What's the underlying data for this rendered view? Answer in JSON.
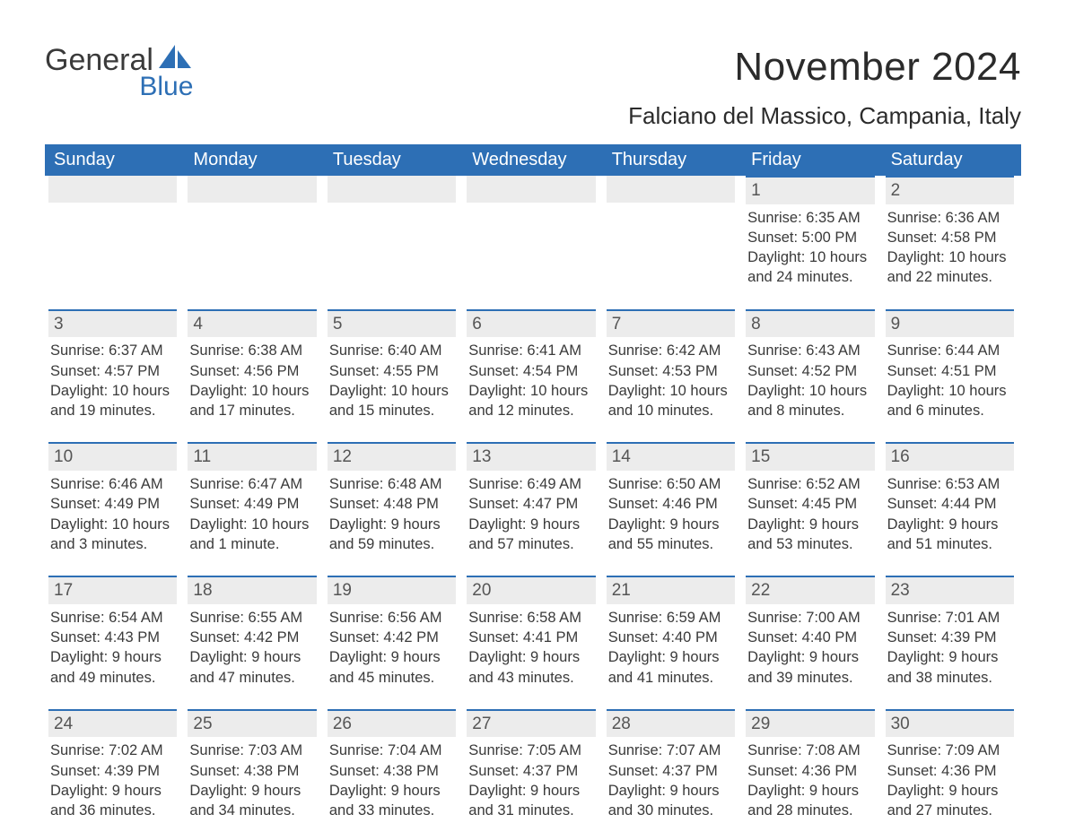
{
  "logo": {
    "general": "General",
    "blue": "Blue"
  },
  "title": "November 2024",
  "location": "Falciano del Massico, Campania, Italy",
  "colors": {
    "brand_blue": "#2d6fb5",
    "header_bg": "#2d6fb5",
    "daynum_bg": "#ececec",
    "text": "#3a3a3a",
    "page_bg": "#ffffff"
  },
  "weekdays": [
    "Sunday",
    "Monday",
    "Tuesday",
    "Wednesday",
    "Thursday",
    "Friday",
    "Saturday"
  ],
  "weeks": [
    [
      null,
      null,
      null,
      null,
      null,
      {
        "n": "1",
        "sunrise": "Sunrise: 6:35 AM",
        "sunset": "Sunset: 5:00 PM",
        "day1": "Daylight: 10 hours",
        "day2": "and 24 minutes."
      },
      {
        "n": "2",
        "sunrise": "Sunrise: 6:36 AM",
        "sunset": "Sunset: 4:58 PM",
        "day1": "Daylight: 10 hours",
        "day2": "and 22 minutes."
      }
    ],
    [
      {
        "n": "3",
        "sunrise": "Sunrise: 6:37 AM",
        "sunset": "Sunset: 4:57 PM",
        "day1": "Daylight: 10 hours",
        "day2": "and 19 minutes."
      },
      {
        "n": "4",
        "sunrise": "Sunrise: 6:38 AM",
        "sunset": "Sunset: 4:56 PM",
        "day1": "Daylight: 10 hours",
        "day2": "and 17 minutes."
      },
      {
        "n": "5",
        "sunrise": "Sunrise: 6:40 AM",
        "sunset": "Sunset: 4:55 PM",
        "day1": "Daylight: 10 hours",
        "day2": "and 15 minutes."
      },
      {
        "n": "6",
        "sunrise": "Sunrise: 6:41 AM",
        "sunset": "Sunset: 4:54 PM",
        "day1": "Daylight: 10 hours",
        "day2": "and 12 minutes."
      },
      {
        "n": "7",
        "sunrise": "Sunrise: 6:42 AM",
        "sunset": "Sunset: 4:53 PM",
        "day1": "Daylight: 10 hours",
        "day2": "and 10 minutes."
      },
      {
        "n": "8",
        "sunrise": "Sunrise: 6:43 AM",
        "sunset": "Sunset: 4:52 PM",
        "day1": "Daylight: 10 hours",
        "day2": "and 8 minutes."
      },
      {
        "n": "9",
        "sunrise": "Sunrise: 6:44 AM",
        "sunset": "Sunset: 4:51 PM",
        "day1": "Daylight: 10 hours",
        "day2": "and 6 minutes."
      }
    ],
    [
      {
        "n": "10",
        "sunrise": "Sunrise: 6:46 AM",
        "sunset": "Sunset: 4:49 PM",
        "day1": "Daylight: 10 hours",
        "day2": "and 3 minutes."
      },
      {
        "n": "11",
        "sunrise": "Sunrise: 6:47 AM",
        "sunset": "Sunset: 4:49 PM",
        "day1": "Daylight: 10 hours",
        "day2": "and 1 minute."
      },
      {
        "n": "12",
        "sunrise": "Sunrise: 6:48 AM",
        "sunset": "Sunset: 4:48 PM",
        "day1": "Daylight: 9 hours",
        "day2": "and 59 minutes."
      },
      {
        "n": "13",
        "sunrise": "Sunrise: 6:49 AM",
        "sunset": "Sunset: 4:47 PM",
        "day1": "Daylight: 9 hours",
        "day2": "and 57 minutes."
      },
      {
        "n": "14",
        "sunrise": "Sunrise: 6:50 AM",
        "sunset": "Sunset: 4:46 PM",
        "day1": "Daylight: 9 hours",
        "day2": "and 55 minutes."
      },
      {
        "n": "15",
        "sunrise": "Sunrise: 6:52 AM",
        "sunset": "Sunset: 4:45 PM",
        "day1": "Daylight: 9 hours",
        "day2": "and 53 minutes."
      },
      {
        "n": "16",
        "sunrise": "Sunrise: 6:53 AM",
        "sunset": "Sunset: 4:44 PM",
        "day1": "Daylight: 9 hours",
        "day2": "and 51 minutes."
      }
    ],
    [
      {
        "n": "17",
        "sunrise": "Sunrise: 6:54 AM",
        "sunset": "Sunset: 4:43 PM",
        "day1": "Daylight: 9 hours",
        "day2": "and 49 minutes."
      },
      {
        "n": "18",
        "sunrise": "Sunrise: 6:55 AM",
        "sunset": "Sunset: 4:42 PM",
        "day1": "Daylight: 9 hours",
        "day2": "and 47 minutes."
      },
      {
        "n": "19",
        "sunrise": "Sunrise: 6:56 AM",
        "sunset": "Sunset: 4:42 PM",
        "day1": "Daylight: 9 hours",
        "day2": "and 45 minutes."
      },
      {
        "n": "20",
        "sunrise": "Sunrise: 6:58 AM",
        "sunset": "Sunset: 4:41 PM",
        "day1": "Daylight: 9 hours",
        "day2": "and 43 minutes."
      },
      {
        "n": "21",
        "sunrise": "Sunrise: 6:59 AM",
        "sunset": "Sunset: 4:40 PM",
        "day1": "Daylight: 9 hours",
        "day2": "and 41 minutes."
      },
      {
        "n": "22",
        "sunrise": "Sunrise: 7:00 AM",
        "sunset": "Sunset: 4:40 PM",
        "day1": "Daylight: 9 hours",
        "day2": "and 39 minutes."
      },
      {
        "n": "23",
        "sunrise": "Sunrise: 7:01 AM",
        "sunset": "Sunset: 4:39 PM",
        "day1": "Daylight: 9 hours",
        "day2": "and 38 minutes."
      }
    ],
    [
      {
        "n": "24",
        "sunrise": "Sunrise: 7:02 AM",
        "sunset": "Sunset: 4:39 PM",
        "day1": "Daylight: 9 hours",
        "day2": "and 36 minutes."
      },
      {
        "n": "25",
        "sunrise": "Sunrise: 7:03 AM",
        "sunset": "Sunset: 4:38 PM",
        "day1": "Daylight: 9 hours",
        "day2": "and 34 minutes."
      },
      {
        "n": "26",
        "sunrise": "Sunrise: 7:04 AM",
        "sunset": "Sunset: 4:38 PM",
        "day1": "Daylight: 9 hours",
        "day2": "and 33 minutes."
      },
      {
        "n": "27",
        "sunrise": "Sunrise: 7:05 AM",
        "sunset": "Sunset: 4:37 PM",
        "day1": "Daylight: 9 hours",
        "day2": "and 31 minutes."
      },
      {
        "n": "28",
        "sunrise": "Sunrise: 7:07 AM",
        "sunset": "Sunset: 4:37 PM",
        "day1": "Daylight: 9 hours",
        "day2": "and 30 minutes."
      },
      {
        "n": "29",
        "sunrise": "Sunrise: 7:08 AM",
        "sunset": "Sunset: 4:36 PM",
        "day1": "Daylight: 9 hours",
        "day2": "and 28 minutes."
      },
      {
        "n": "30",
        "sunrise": "Sunrise: 7:09 AM",
        "sunset": "Sunset: 4:36 PM",
        "day1": "Daylight: 9 hours",
        "day2": "and 27 minutes."
      }
    ]
  ]
}
